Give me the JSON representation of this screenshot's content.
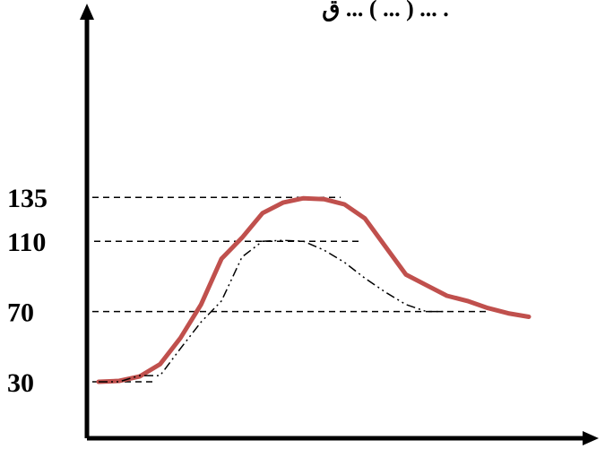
{
  "header": {
    "text_fragment": "ق ... ( ... ) ... ."
  },
  "chart_data": {
    "type": "line",
    "title": "",
    "xlabel": "",
    "ylabel": "",
    "ylim": [
      0,
      145
    ],
    "y_ticks": [
      30,
      70,
      110,
      135
    ],
    "grid": false,
    "colors": {
      "series_1": "#c0504d",
      "series_2": "#000000",
      "reference": "#000000",
      "axis": "#000000"
    },
    "series": [
      {
        "style": "solid-thick",
        "x": [
          0,
          5,
          10,
          15,
          20,
          25,
          30,
          35,
          40,
          45,
          50,
          55,
          60,
          65,
          70,
          75,
          80,
          85,
          90,
          95,
          100,
          105
        ],
        "y": [
          30,
          30.5,
          33,
          40,
          55,
          74,
          100,
          112,
          126,
          132,
          134.5,
          134,
          131,
          123,
          107,
          91,
          85,
          79,
          76,
          72,
          69,
          67
        ]
      },
      {
        "style": "dash-dot-dot",
        "x": [
          0,
          5,
          10,
          15,
          20,
          25,
          30,
          35,
          40,
          45,
          50,
          55,
          60,
          65,
          70,
          75,
          80,
          85
        ],
        "y": [
          30,
          30,
          33.5,
          33.5,
          49,
          64,
          76,
          101,
          110,
          110.5,
          110,
          105,
          98,
          89,
          81,
          74,
          70,
          70
        ]
      }
    ]
  }
}
